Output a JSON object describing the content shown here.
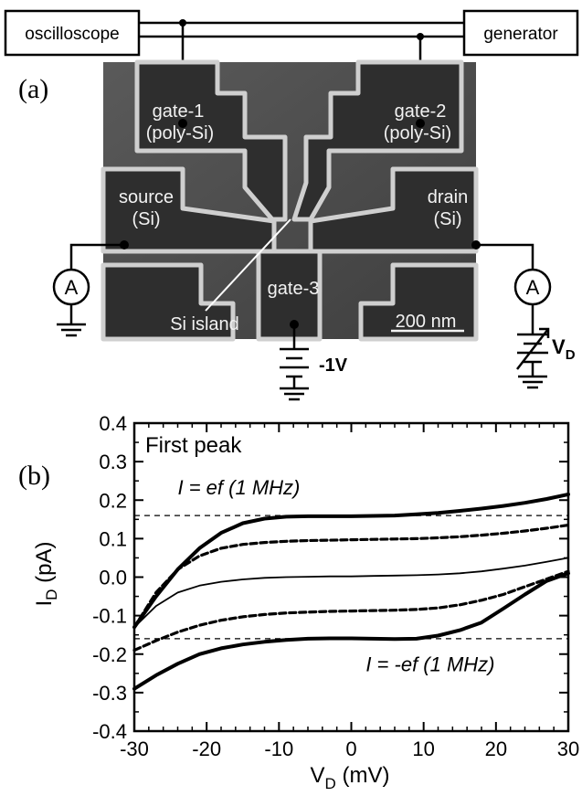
{
  "panel_a": {
    "label": "(a)",
    "oscilloscope": "oscilloscope",
    "generator": "generator",
    "gate1_line1": "gate-1",
    "gate1_line2": "(poly-Si)",
    "gate2_line1": "gate-2",
    "gate2_line2": "(poly-Si)",
    "source_line1": "source",
    "source_line2": "(Si)",
    "drain_line1": "drain",
    "drain_line2": "(Si)",
    "gate3": "gate-3",
    "si_island": "Si island",
    "scale_bar": "200 nm",
    "ammeter_left": "A",
    "ammeter_right": "A",
    "bias_voltage": "-1V",
    "vd_main": "V",
    "vd_sub": "D"
  },
  "panel_b": {
    "label": "(b)"
  },
  "chart_data": {
    "type": "line",
    "title": "First peak",
    "xlabel_main": "V",
    "xlabel_sub": "D",
    "xlabel_unit": " (mV)",
    "ylabel_main": "I",
    "ylabel_sub": "D",
    "ylabel_unit": " (pA)",
    "xlim": [
      -30,
      30
    ],
    "ylim": [
      -0.4,
      0.4
    ],
    "x_ticks": [
      "-30",
      "-20",
      "-10",
      "0",
      "10",
      "20",
      "30"
    ],
    "y_ticks": [
      "0.4",
      "0.3",
      "0.2",
      "0.1",
      "0.0",
      "-0.1",
      "-0.2",
      "-0.3",
      "-0.4"
    ],
    "annotations": [
      {
        "text": "I = ef (1 MHz)",
        "x": -24,
        "y": 0.215
      },
      {
        "text": "I = -ef (1 MHz)",
        "x": 2,
        "y": -0.245
      }
    ],
    "reference_lines": [
      0.16,
      -0.16
    ],
    "series": [
      {
        "style": "thick-solid",
        "x": [
          -30,
          -27,
          -24,
          -21,
          -18,
          -15,
          -12,
          -9,
          -6,
          -3,
          0,
          3,
          6,
          9,
          12,
          15,
          18,
          21,
          24,
          27,
          30
        ],
        "y": [
          -0.13,
          -0.05,
          0.02,
          0.075,
          0.115,
          0.14,
          0.152,
          0.157,
          0.158,
          0.158,
          0.158,
          0.159,
          0.16,
          0.163,
          0.167,
          0.172,
          0.178,
          0.185,
          0.193,
          0.203,
          0.215
        ]
      },
      {
        "style": "thick-solid",
        "x": [
          -30,
          -27,
          -24,
          -21,
          -18,
          -15,
          -12,
          -9,
          -6,
          -3,
          0,
          3,
          6,
          9,
          12,
          15,
          18,
          21,
          24,
          27,
          30
        ],
        "y": [
          -0.29,
          -0.255,
          -0.225,
          -0.2,
          -0.185,
          -0.175,
          -0.168,
          -0.163,
          -0.16,
          -0.159,
          -0.159,
          -0.16,
          -0.161,
          -0.16,
          -0.152,
          -0.138,
          -0.118,
          -0.082,
          -0.045,
          -0.01,
          0.01
        ]
      },
      {
        "style": "dashed",
        "x": [
          -30,
          -27,
          -24,
          -21,
          -18,
          -15,
          -12,
          -9,
          -6,
          -3,
          0,
          3,
          6,
          9,
          12,
          15,
          18,
          21,
          24,
          27,
          30
        ],
        "y": [
          -0.13,
          -0.04,
          0.02,
          0.055,
          0.075,
          0.085,
          0.09,
          0.093,
          0.095,
          0.096,
          0.097,
          0.098,
          0.099,
          0.1,
          0.102,
          0.105,
          0.109,
          0.114,
          0.12,
          0.127,
          0.135
        ]
      },
      {
        "style": "dashed",
        "x": [
          -30,
          -27,
          -24,
          -21,
          -18,
          -15,
          -12,
          -9,
          -6,
          -3,
          0,
          3,
          6,
          9,
          12,
          15,
          18,
          21,
          24,
          27,
          30
        ],
        "y": [
          -0.19,
          -0.165,
          -0.143,
          -0.125,
          -0.112,
          -0.103,
          -0.097,
          -0.093,
          -0.091,
          -0.089,
          -0.088,
          -0.087,
          -0.086,
          -0.084,
          -0.08,
          -0.072,
          -0.06,
          -0.045,
          -0.025,
          -0.005,
          0.015
        ]
      },
      {
        "style": "thin-solid",
        "x": [
          -30,
          -27,
          -24,
          -21,
          -18,
          -15,
          -12,
          -9,
          -6,
          -3,
          0,
          3,
          6,
          9,
          12,
          15,
          18,
          21,
          24,
          27,
          30
        ],
        "y": [
          -0.13,
          -0.075,
          -0.04,
          -0.022,
          -0.012,
          -0.006,
          -0.002,
          0.0,
          0.001,
          0.002,
          0.002,
          0.003,
          0.004,
          0.005,
          0.007,
          0.01,
          0.015,
          0.022,
          0.03,
          0.04,
          0.05
        ]
      }
    ]
  }
}
